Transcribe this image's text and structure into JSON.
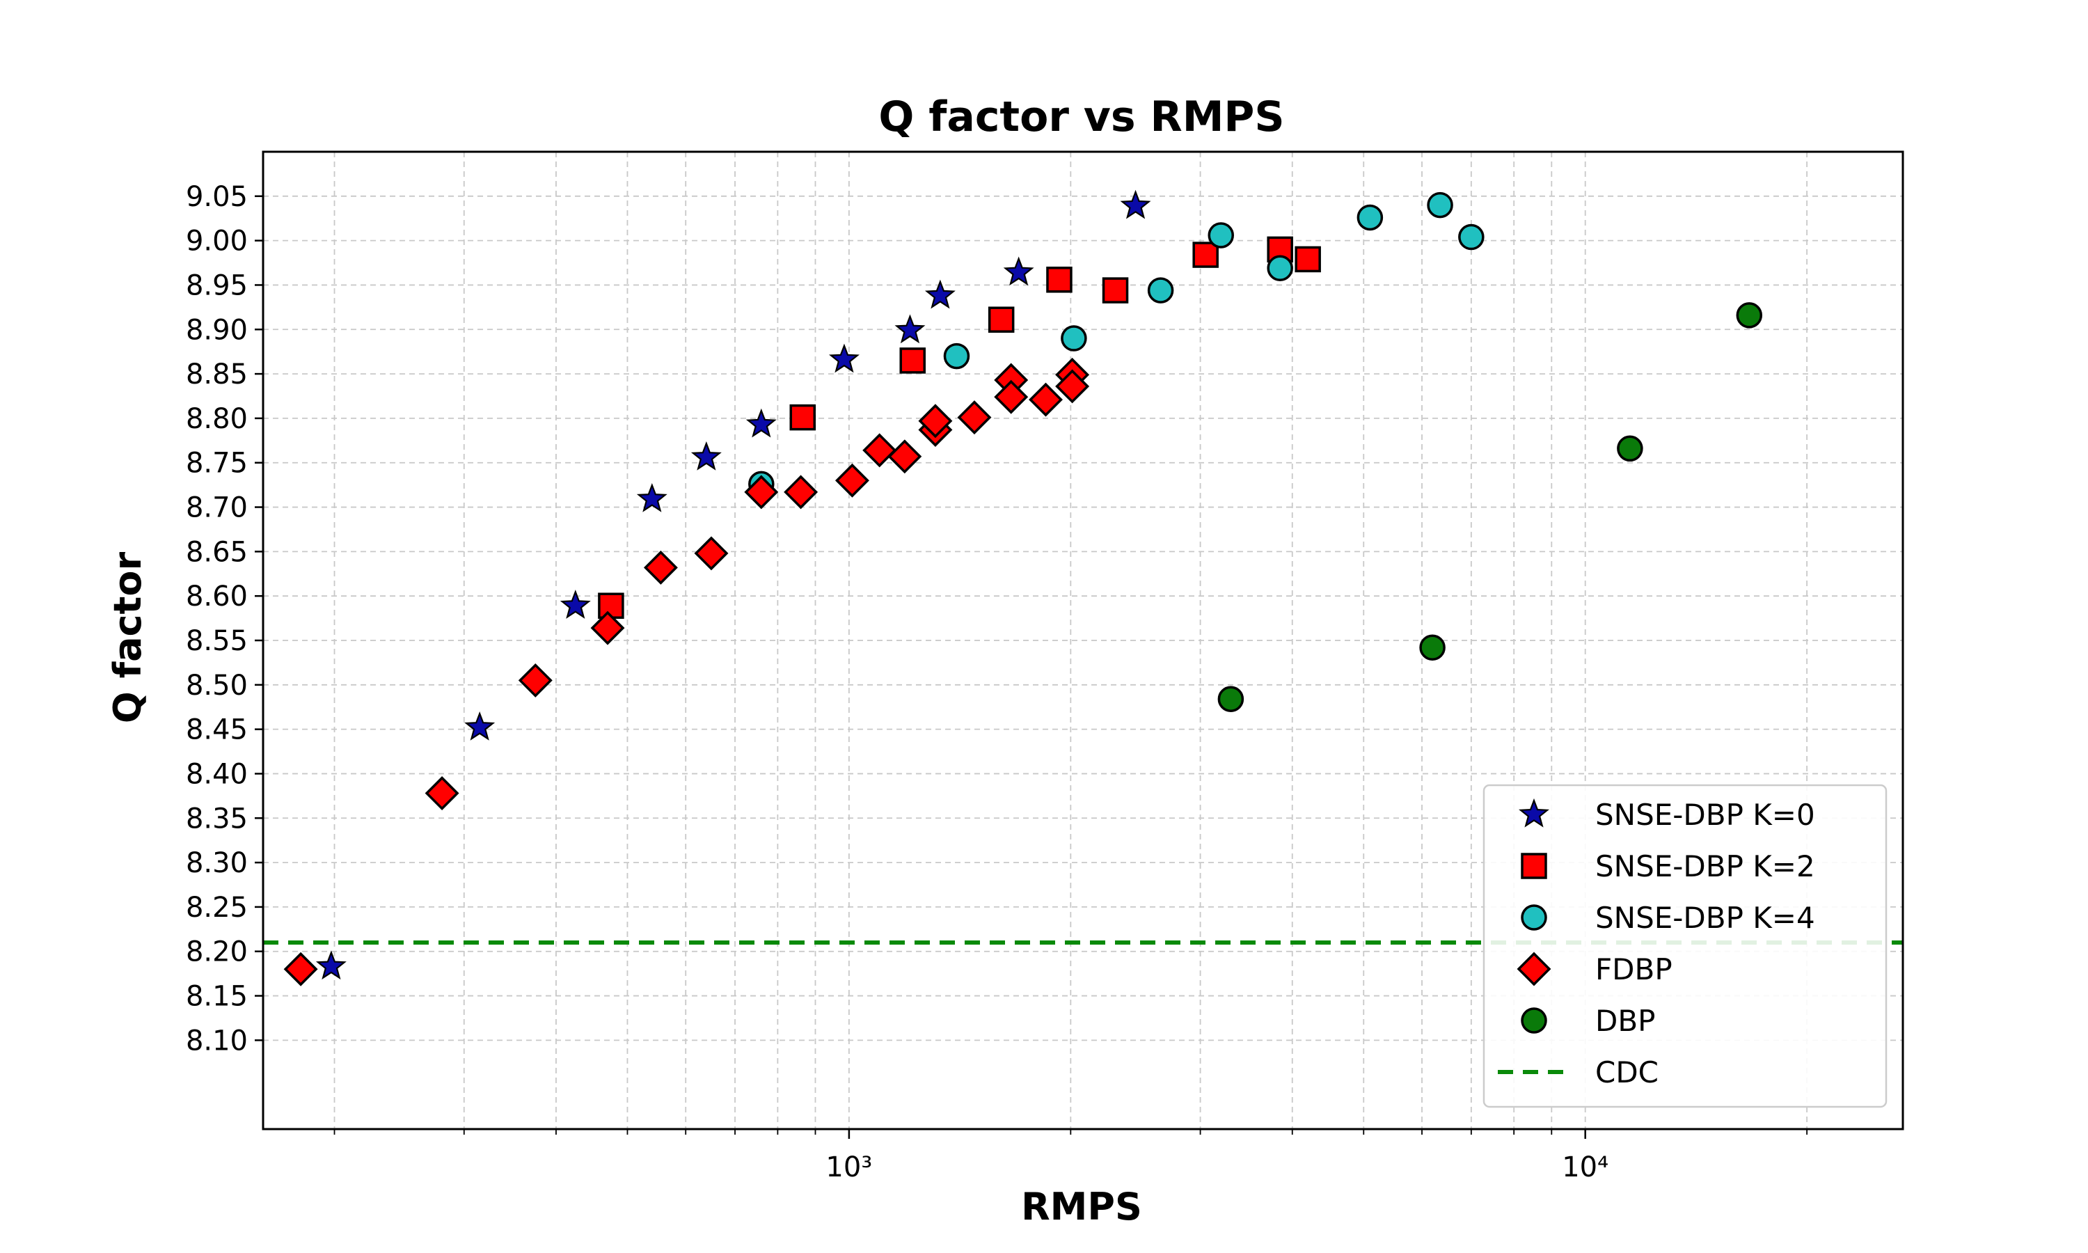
{
  "chart_data": {
    "type": "scatter",
    "title": "Q factor vs RMPS",
    "xlabel": "RMPS",
    "ylabel": "Q factor",
    "xscale": "log",
    "xlim": [
      160,
      27000
    ],
    "ylim": [
      8.0,
      9.1
    ],
    "x_major_ticks": [
      1000,
      10000
    ],
    "x_major_tick_labels": [
      "10³",
      "10⁴"
    ],
    "y_ticks": [
      8.1,
      8.15,
      8.2,
      8.25,
      8.3,
      8.35,
      8.4,
      8.45,
      8.5,
      8.55,
      8.6,
      8.65,
      8.7,
      8.75,
      8.8,
      8.85,
      8.9,
      8.95,
      9.0,
      9.05
    ],
    "y_tick_labels": [
      "8.10",
      "8.15",
      "8.20",
      "8.25",
      "8.30",
      "8.35",
      "8.40",
      "8.45",
      "8.50",
      "8.55",
      "8.60",
      "8.65",
      "8.70",
      "8.75",
      "8.80",
      "8.85",
      "8.90",
      "8.95",
      "9.00",
      "9.05"
    ],
    "grid": true,
    "legend_position": "lower-right",
    "series": [
      {
        "name": "SNSE-DBP K=0",
        "marker": "star",
        "color": "#0a0aa8",
        "points": [
          [
            198,
            8.183
          ],
          [
            315,
            8.452
          ],
          [
            425,
            8.589
          ],
          [
            540,
            8.709
          ],
          [
            640,
            8.756
          ],
          [
            760,
            8.793
          ],
          [
            985,
            8.866
          ],
          [
            1210,
            8.899
          ],
          [
            1330,
            8.938
          ],
          [
            1700,
            8.964
          ],
          [
            2450,
            9.039
          ]
        ]
      },
      {
        "name": "SNSE-DBP K=2",
        "marker": "square",
        "color": "#ff0000",
        "points": [
          [
            475,
            8.589
          ],
          [
            865,
            8.801
          ],
          [
            1220,
            8.865
          ],
          [
            1610,
            8.911
          ],
          [
            1930,
            8.956
          ],
          [
            2300,
            8.944
          ],
          [
            3050,
            8.984
          ],
          [
            3850,
            8.99
          ],
          [
            4200,
            8.979
          ]
        ]
      },
      {
        "name": "SNSE-DBP K=4",
        "marker": "circle",
        "color": "#20c0c0",
        "points": [
          [
            760,
            8.726
          ],
          [
            1400,
            8.87
          ],
          [
            2020,
            8.89
          ],
          [
            2650,
            8.944
          ],
          [
            3200,
            9.006
          ],
          [
            3850,
            8.969
          ],
          [
            5100,
            9.026
          ],
          [
            6350,
            9.04
          ],
          [
            7000,
            9.004
          ]
        ]
      },
      {
        "name": "FDBP",
        "marker": "diamond",
        "color": "#ff0000",
        "points": [
          [
            180,
            8.18
          ],
          [
            280,
            8.378
          ],
          [
            375,
            8.505
          ],
          [
            470,
            8.564
          ],
          [
            555,
            8.632
          ],
          [
            650,
            8.648
          ],
          [
            760,
            8.717
          ],
          [
            860,
            8.717
          ],
          [
            1010,
            8.73
          ],
          [
            1100,
            8.764
          ],
          [
            1190,
            8.757
          ],
          [
            1310,
            8.787
          ],
          [
            1310,
            8.797
          ],
          [
            1480,
            8.801
          ],
          [
            1660,
            8.843
          ],
          [
            1660,
            8.824
          ],
          [
            1850,
            8.821
          ],
          [
            2010,
            8.849
          ],
          [
            2010,
            8.836
          ]
        ]
      },
      {
        "name": "DBP",
        "marker": "circle",
        "color": "#0a7a0a",
        "points": [
          [
            3300,
            8.484
          ],
          [
            6200,
            8.542
          ],
          [
            11500,
            8.766
          ],
          [
            16700,
            8.916
          ]
        ]
      },
      {
        "name": "CDC",
        "marker": "dashed-line",
        "color": "#0a8a0a",
        "value": 8.21
      }
    ]
  }
}
